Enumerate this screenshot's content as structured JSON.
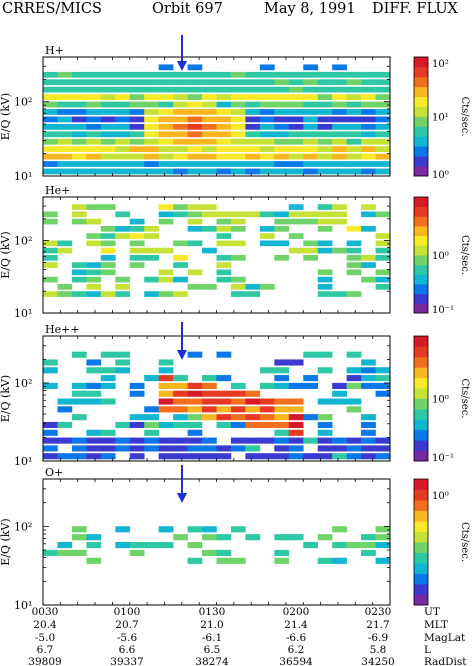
{
  "header": {
    "mission": "CRRES/MICS",
    "orbit": "Orbit 697",
    "date": "May 8, 1991",
    "product": "DIFF. FLUX"
  },
  "colors": {
    "colormap": [
      "#7a2aa0",
      "#3b3ad0",
      "#0a78e8",
      "#13b6d0",
      "#2ec9a4",
      "#6fd36a",
      "#c7e236",
      "#f7ea2a",
      "#f9b61f",
      "#f2701d",
      "#e63b22",
      "#d61a2a"
    ],
    "arrow": "#1a2fd8",
    "frame": "#000000"
  },
  "icons": {
    "marker": "arrow-down-icon"
  },
  "chart_data": [
    {
      "type": "heatmap",
      "species": "H+",
      "ylabel": "E/Q (kV)",
      "yscale": "log",
      "ylim": [
        10,
        400
      ],
      "ytick_labels": [
        "10¹",
        "10²"
      ],
      "colorbar": {
        "label": "Cts/sec.",
        "scale": "log",
        "range": [
          1,
          100
        ],
        "tick_labels": [
          "10⁰",
          "10¹",
          "10²"
        ]
      },
      "arrow": true,
      "note": "dense flux across all times, peak near 0120 UT around 50–70 kV"
    },
    {
      "type": "heatmap",
      "species": "He+",
      "ylabel": "E/Q (kV)",
      "yscale": "log",
      "ylim": [
        10,
        400
      ],
      "ytick_labels": [
        "10¹",
        "10²"
      ],
      "colorbar": {
        "label": "Cts/sec.",
        "scale": "log",
        "range": [
          0.1,
          10
        ],
        "tick_labels": [
          "10⁻¹",
          "10⁰"
        ]
      },
      "arrow": false,
      "note": "sparse flux, mostly above 30 kV"
    },
    {
      "type": "heatmap",
      "species": "He++",
      "ylabel": "E/Q (kV)",
      "yscale": "log",
      "ylim": [
        10,
        400
      ],
      "ytick_labels": [
        "10¹",
        "10²"
      ],
      "colorbar": {
        "label": "Cts/sec.",
        "scale": "log",
        "range": [
          0.1,
          10
        ],
        "tick_labels": [
          "10⁻¹",
          "10⁰"
        ]
      },
      "arrow": true,
      "note": "intense band starting after 0120 UT, decreasing in energy with time"
    },
    {
      "type": "heatmap",
      "species": "O+",
      "ylabel": "E/Q (kV)",
      "yscale": "log",
      "ylim": [
        10,
        400
      ],
      "ytick_labels": [
        "10¹",
        "10²"
      ],
      "colorbar": {
        "label": "Cts/sec.",
        "scale": "log",
        "range": [
          0.2,
          1.2
        ],
        "tick_labels": [
          "10⁰"
        ]
      },
      "arrow": true,
      "note": "weak flux near 60–120 kV"
    }
  ],
  "xaxis": {
    "tick_labels": [
      "0030",
      "0100",
      "0130",
      "0200",
      "0230"
    ],
    "rows": [
      {
        "label": "UT",
        "values": [
          "0030",
          "0100",
          "0130",
          "0200",
          "0230"
        ]
      },
      {
        "label": "MLT",
        "values": [
          "20.4",
          "20.7",
          "21.0",
          "21.4",
          "21.7"
        ]
      },
      {
        "label": "MagLat",
        "values": [
          "-5.0",
          "-5.6",
          "-6.1",
          "-6.6",
          "-6.9"
        ]
      },
      {
        "label": "L",
        "values": [
          "6.7",
          "6.6",
          "6.5",
          "6.2",
          "5.8"
        ]
      },
      {
        "label": "RadDist",
        "values": [
          "39809",
          "39337",
          "38274",
          "36594",
          "34250"
        ]
      }
    ]
  }
}
